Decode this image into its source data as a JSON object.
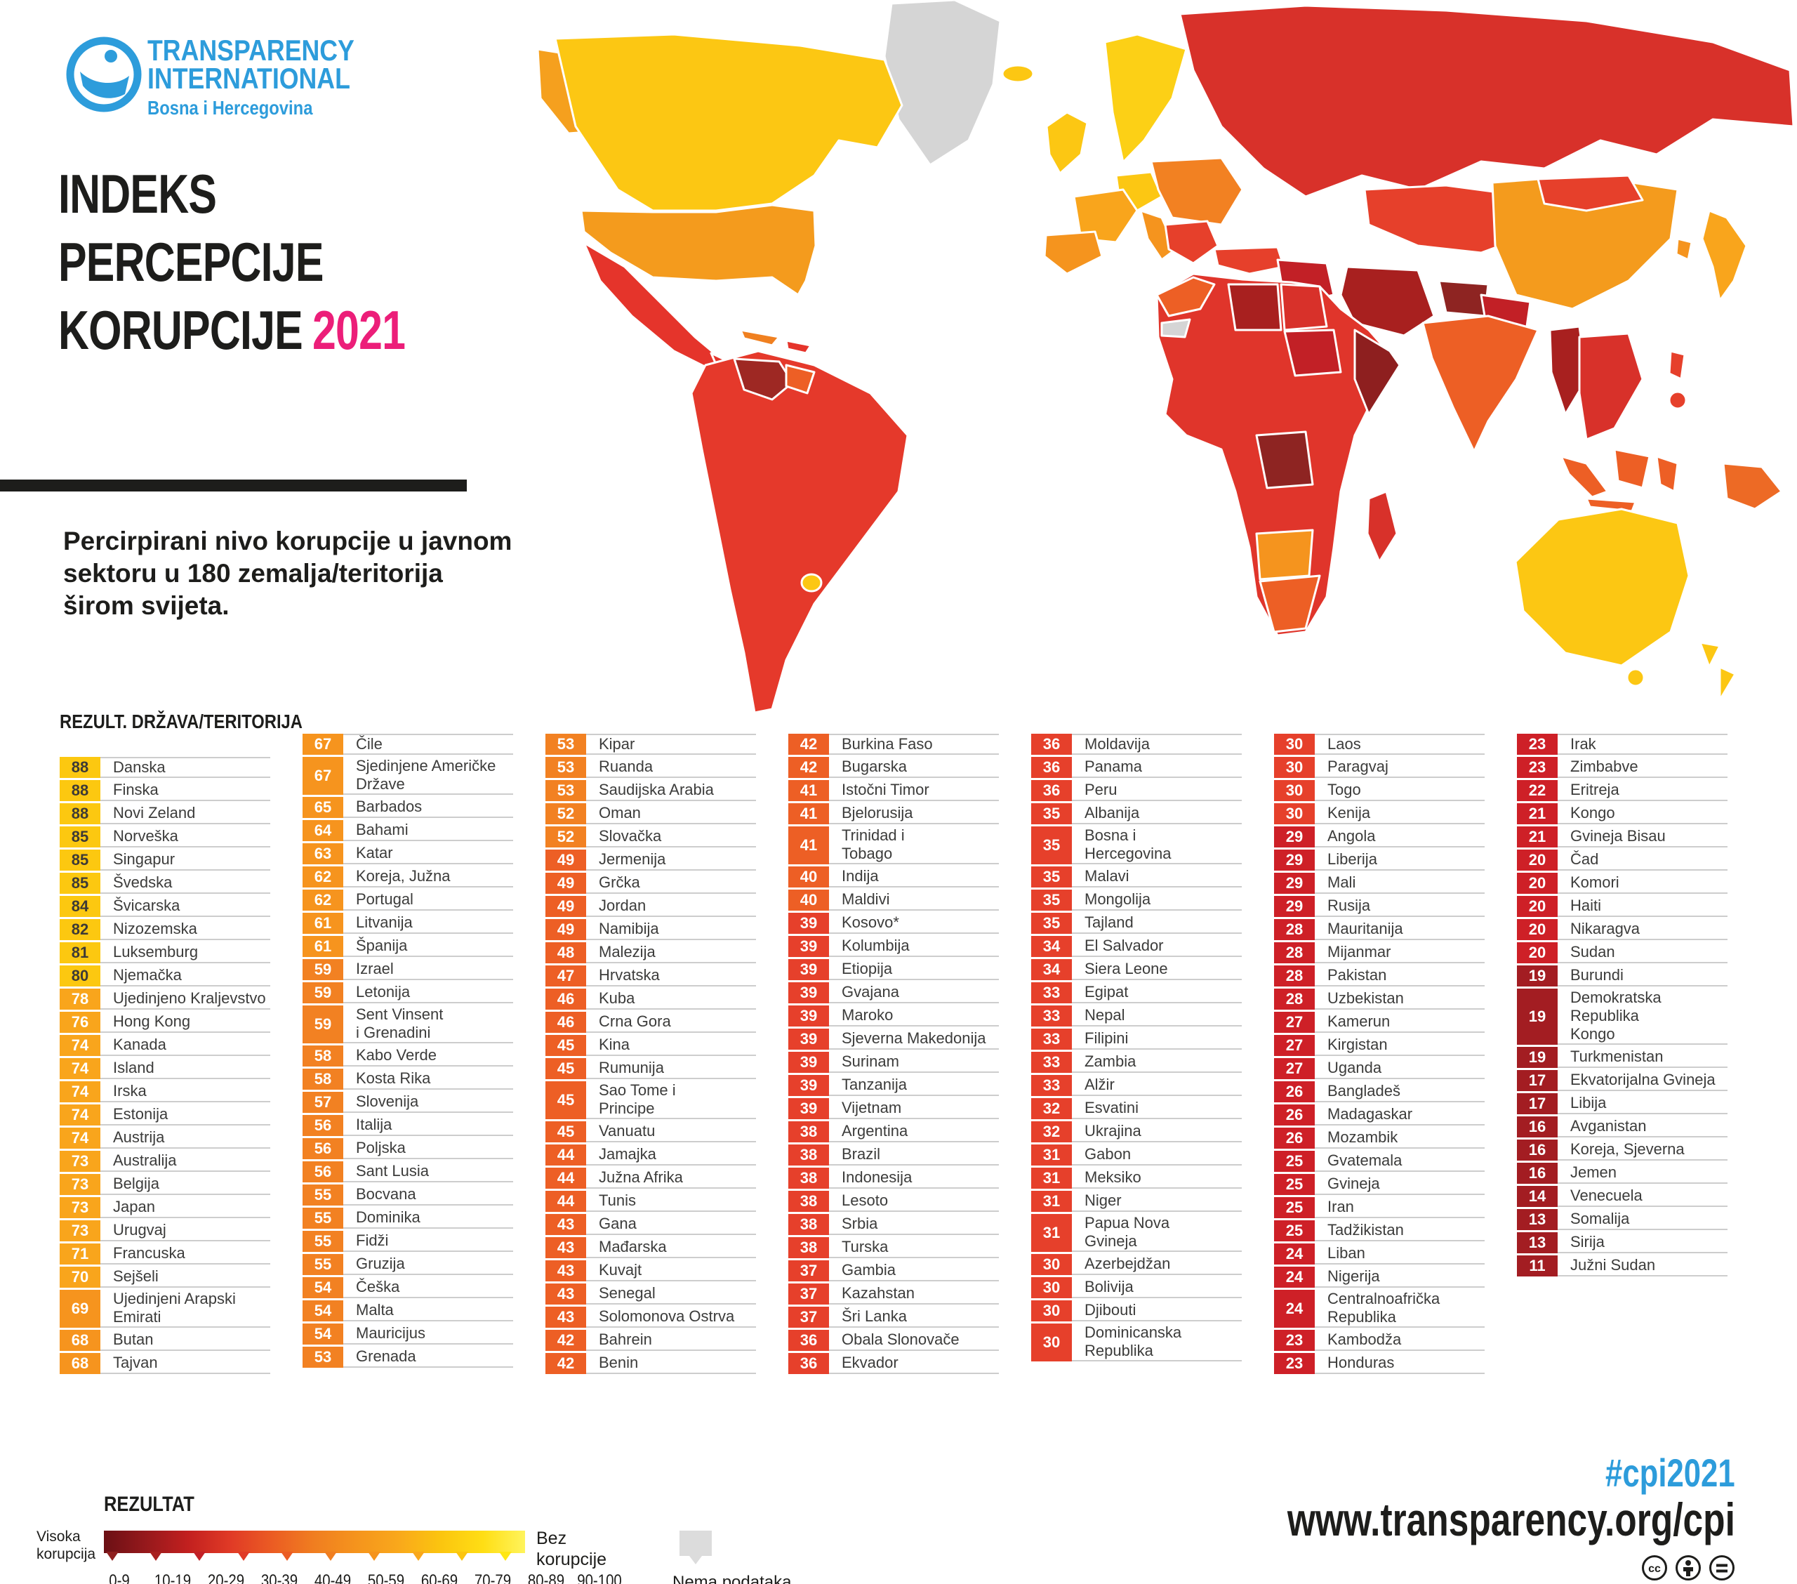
{
  "brand": {
    "org_line1": "TRANSPARENCY",
    "org_line2": "INTERNATIONAL",
    "chapter": "Bosna i Hercegovina"
  },
  "title": {
    "line1": "INDEKS",
    "line2": "PERCEPCIJE",
    "line3": "KORUPCIJE",
    "year": "2021"
  },
  "subtitle": "Percirpirani nivo korupcije u javnom\nsektoru u 180 zemalja/teritorija\nširom svijeta.",
  "list_header": "REZULT. DRŽAVA/TERITORIJA",
  "legend": {
    "title": "REZULTAT",
    "low_label": "Visoka\nkorupcija",
    "high_label": "Bez\nkorupcije",
    "no_data": "Nema podataka",
    "ticks": [
      "0-9",
      "10-19",
      "20-29",
      "30-39",
      "40-49",
      "50-59",
      "60-69",
      "70-79",
      "80-89",
      "90-100"
    ],
    "gradient": [
      "#6B1015",
      "#96191C",
      "#C2201F",
      "#E03A26",
      "#EB5C23",
      "#F07E20",
      "#F5941D",
      "#F9A81B",
      "#FBC50F",
      "#FFDE14",
      "#FFF45C"
    ],
    "tick_colors": [
      "#8E1F1F",
      "#A8201F",
      "#C22026",
      "#E03A26",
      "#EB5C23",
      "#F07E20",
      "#F5941D",
      "#F9A81B",
      "#FBC50F",
      "#FFE714"
    ]
  },
  "footer": {
    "hashtag": "#cpi2021",
    "url": "www.transparency.org/cpi"
  },
  "colors": {
    "brand_blue": "#2D9CDB",
    "accent_pink": "#EC1E79",
    "title_black": "#1D1D1B",
    "row_text": "#3C3C3B",
    "divider": "#CDCDCD",
    "bands": [
      {
        "min": 80,
        "color": "#FCC810",
        "text": "#3D3A36"
      },
      {
        "min": 70,
        "color": "#F9A51C",
        "text": "#FFFFFF"
      },
      {
        "min": 60,
        "color": "#F6941E",
        "text": "#FFFFFF"
      },
      {
        "min": 50,
        "color": "#F28122",
        "text": "#FFFFFF"
      },
      {
        "min": 40,
        "color": "#ED5F25",
        "text": "#FFFFFF"
      },
      {
        "min": 30,
        "color": "#E6402B",
        "text": "#FFFFFF"
      },
      {
        "min": 20,
        "color": "#CE2027",
        "text": "#FFFFFF"
      },
      {
        "min": 0,
        "color": "#A31D22",
        "text": "#FFFFFF"
      }
    ]
  },
  "map": {
    "no_data_color": "#D5D5D5",
    "regions": {
      "greenland": "#D5D5D5",
      "iceland": "#FCC713",
      "alaska": "#F5A01E",
      "canada": "#FCC713",
      "usa": "#F49B1D",
      "mexico": "#E5342B",
      "central-america": "#E5342B",
      "cuba": "#F08020",
      "hispaniola": "#E5342B",
      "south-america": "#E5392B",
      "venezuela": "#9E2823",
      "guyanas": "#ED5F25",
      "uruguay": "#FCC713",
      "uk": "#FCC713",
      "scandinavia": "#FCD016",
      "germany": "#FCC713",
      "france": "#F9A51C",
      "iberia": "#F5941E",
      "italy": "#F5941E",
      "east-europe": "#F28122",
      "balkans": "#E6402B",
      "russia": "#D8312A",
      "turkey": "#E6402B",
      "iraq-syria": "#C22026",
      "iran": "#A8201F",
      "saudi": "#F5A01E",
      "yemen": "#8E1F1F",
      "central-asia": "#E6402B",
      "afghanistan": "#8E2422",
      "pakistan": "#C22026",
      "india": "#ED5F25",
      "china": "#F49B1D",
      "mongolia": "#E6402B",
      "korea": "#F5941E",
      "japan": "#F9A51C",
      "myanmar": "#A8201F",
      "indochina": "#D8312A",
      "philippines": "#E6402B",
      "sumatra": "#ED5F25",
      "borneo": "#ED5F25",
      "sulawesi": "#ED5F25",
      "java": "#ED5F25",
      "papua": "#ED6A25",
      "australia": "#FCC713",
      "tasmania": "#FCC713",
      "new-zealand": "#FCC713",
      "africa": "#E0352B",
      "morocco": "#ED5F25",
      "west-sahara": "#D5D5D5",
      "libya": "#A8201F",
      "egypt": "#D8312A",
      "sudan": "#C22026",
      "somalia": "#8E1F1F",
      "drc": "#8E2422",
      "botswana-namibia": "#F5941E",
      "south-africa": "#ED5F25",
      "madagascar": "#D8312A"
    }
  },
  "chart_data": {
    "type": "choropleth",
    "title": "INDEKS PERCEPCIJE KORUPCIJE 2021",
    "subtitle": "Percirpirani nivo korupcije u javnom sektoru u 180 zemalja/teritorija širom svijeta.",
    "scale": {
      "min": 0,
      "max": 100,
      "low_label": "Visoka korupcija",
      "high_label": "Bez korupcije",
      "no_data_label": "Nema podataka"
    },
    "columns": [
      [
        {
          "score": 88,
          "name": "Danska"
        },
        {
          "score": 88,
          "name": "Finska"
        },
        {
          "score": 88,
          "name": "Novi Zeland"
        },
        {
          "score": 85,
          "name": "Norveška"
        },
        {
          "score": 85,
          "name": "Singapur"
        },
        {
          "score": 85,
          "name": "Švedska"
        },
        {
          "score": 84,
          "name": "Švicarska"
        },
        {
          "score": 82,
          "name": "Nizozemska"
        },
        {
          "score": 81,
          "name": "Luksemburg"
        },
        {
          "score": 80,
          "name": "Njemačka"
        },
        {
          "score": 78,
          "name": "Ujedinjeno Kraljevstvo"
        },
        {
          "score": 76,
          "name": "Hong Kong"
        },
        {
          "score": 74,
          "name": "Kanada"
        },
        {
          "score": 74,
          "name": "Island"
        },
        {
          "score": 74,
          "name": "Irska"
        },
        {
          "score": 74,
          "name": "Estonija"
        },
        {
          "score": 74,
          "name": "Austrija"
        },
        {
          "score": 73,
          "name": "Australija"
        },
        {
          "score": 73,
          "name": "Belgija"
        },
        {
          "score": 73,
          "name": "Japan"
        },
        {
          "score": 73,
          "name": "Urugvaj"
        },
        {
          "score": 71,
          "name": "Francuska"
        },
        {
          "score": 70,
          "name": "Sejšeli"
        },
        {
          "score": 69,
          "name": "Ujedinjeni Arapski\nEmirati"
        },
        {
          "score": 68,
          "name": "Butan"
        },
        {
          "score": 68,
          "name": "Tajvan"
        }
      ],
      [
        {
          "score": 67,
          "name": "Čile"
        },
        {
          "score": 67,
          "name": "Sjedinjene Američke\nDržave"
        },
        {
          "score": 65,
          "name": "Barbados"
        },
        {
          "score": 64,
          "name": "Bahami"
        },
        {
          "score": 63,
          "name": "Katar"
        },
        {
          "score": 62,
          "name": "Koreja, Južna"
        },
        {
          "score": 62,
          "name": "Portugal"
        },
        {
          "score": 61,
          "name": "Litvanija"
        },
        {
          "score": 61,
          "name": "Španija"
        },
        {
          "score": 59,
          "name": "Izrael"
        },
        {
          "score": 59,
          "name": "Letonija"
        },
        {
          "score": 59,
          "name": "Sent Vinsent\ni Grenadini"
        },
        {
          "score": 58,
          "name": "Kabo Verde"
        },
        {
          "score": 58,
          "name": "Kosta Rika"
        },
        {
          "score": 57,
          "name": "Slovenija"
        },
        {
          "score": 56,
          "name": "Italija"
        },
        {
          "score": 56,
          "name": "Poljska"
        },
        {
          "score": 56,
          "name": "Sant Lusia"
        },
        {
          "score": 55,
          "name": "Bocvana"
        },
        {
          "score": 55,
          "name": "Dominika"
        },
        {
          "score": 55,
          "name": "Fidži"
        },
        {
          "score": 55,
          "name": "Gruzija"
        },
        {
          "score": 54,
          "name": "Češka"
        },
        {
          "score": 54,
          "name": "Malta"
        },
        {
          "score": 54,
          "name": "Mauricijus"
        },
        {
          "score": 53,
          "name": "Grenada"
        }
      ],
      [
        {
          "score": 53,
          "name": "Kipar"
        },
        {
          "score": 53,
          "name": "Ruanda"
        },
        {
          "score": 53,
          "name": "Saudijska Arabia"
        },
        {
          "score": 52,
          "name": "Oman"
        },
        {
          "score": 52,
          "name": "Slovačka"
        },
        {
          "score": 49,
          "name": "Jermenija"
        },
        {
          "score": 49,
          "name": "Grčka"
        },
        {
          "score": 49,
          "name": "Jordan"
        },
        {
          "score": 49,
          "name": "Namibija"
        },
        {
          "score": 48,
          "name": "Malezija"
        },
        {
          "score": 47,
          "name": "Hrvatska"
        },
        {
          "score": 46,
          "name": "Kuba"
        },
        {
          "score": 46,
          "name": "Crna Gora"
        },
        {
          "score": 45,
          "name": "Kina"
        },
        {
          "score": 45,
          "name": "Rumunija"
        },
        {
          "score": 45,
          "name": "Sao Tome i\nPrincipe"
        },
        {
          "score": 45,
          "name": "Vanuatu"
        },
        {
          "score": 44,
          "name": "Jamajka"
        },
        {
          "score": 44,
          "name": "Južna Afrika"
        },
        {
          "score": 44,
          "name": "Tunis"
        },
        {
          "score": 43,
          "name": "Gana"
        },
        {
          "score": 43,
          "name": "Mađarska"
        },
        {
          "score": 43,
          "name": "Kuvajt"
        },
        {
          "score": 43,
          "name": "Senegal"
        },
        {
          "score": 43,
          "name": "Solomonova Ostrva"
        },
        {
          "score": 42,
          "name": "Bahrein"
        },
        {
          "score": 42,
          "name": "Benin"
        }
      ],
      [
        {
          "score": 42,
          "name": "Burkina Faso"
        },
        {
          "score": 42,
          "name": "Bugarska"
        },
        {
          "score": 41,
          "name": "Istočni Timor"
        },
        {
          "score": 41,
          "name": "Bjelorusija"
        },
        {
          "score": 41,
          "name": "Trinidad i\nTobago"
        },
        {
          "score": 40,
          "name": "Indija"
        },
        {
          "score": 40,
          "name": "Maldivi"
        },
        {
          "score": 39,
          "name": "Kosovo*"
        },
        {
          "score": 39,
          "name": "Kolumbija"
        },
        {
          "score": 39,
          "name": "Etiopija"
        },
        {
          "score": 39,
          "name": "Gvajana"
        },
        {
          "score": 39,
          "name": "Maroko"
        },
        {
          "score": 39,
          "name": "Sjeverna Makedonija"
        },
        {
          "score": 39,
          "name": "Surinam"
        },
        {
          "score": 39,
          "name": "Tanzanija"
        },
        {
          "score": 39,
          "name": "Vijetnam"
        },
        {
          "score": 38,
          "name": "Argentina"
        },
        {
          "score": 38,
          "name": "Brazil"
        },
        {
          "score": 38,
          "name": "Indonesija"
        },
        {
          "score": 38,
          "name": "Lesoto"
        },
        {
          "score": 38,
          "name": "Srbia"
        },
        {
          "score": 38,
          "name": "Turska"
        },
        {
          "score": 37,
          "name": "Gambia"
        },
        {
          "score": 37,
          "name": "Kazahstan"
        },
        {
          "score": 37,
          "name": "Šri Lanka"
        },
        {
          "score": 36,
          "name": "Obala Slonovače"
        },
        {
          "score": 36,
          "name": "Ekvador"
        }
      ],
      [
        {
          "score": 36,
          "name": "Moldavija"
        },
        {
          "score": 36,
          "name": "Panama"
        },
        {
          "score": 36,
          "name": "Peru"
        },
        {
          "score": 35,
          "name": "Albanija"
        },
        {
          "score": 35,
          "name": "Bosna i\nHercegovina"
        },
        {
          "score": 35,
          "name": "Malavi"
        },
        {
          "score": 35,
          "name": "Mongolija"
        },
        {
          "score": 35,
          "name": "Tajland"
        },
        {
          "score": 34,
          "name": "El Salvador"
        },
        {
          "score": 34,
          "name": "Siera Leone"
        },
        {
          "score": 33,
          "name": "Egipat"
        },
        {
          "score": 33,
          "name": "Nepal"
        },
        {
          "score": 33,
          "name": "Filipini"
        },
        {
          "score": 33,
          "name": "Zambia"
        },
        {
          "score": 33,
          "name": "Alžir"
        },
        {
          "score": 32,
          "name": "Esvatini"
        },
        {
          "score": 32,
          "name": "Ukrajina"
        },
        {
          "score": 31,
          "name": "Gabon"
        },
        {
          "score": 31,
          "name": "Meksiko"
        },
        {
          "score": 31,
          "name": "Niger"
        },
        {
          "score": 31,
          "name": "Papua Nova\nGvineja"
        },
        {
          "score": 30,
          "name": "Azerbejdžan"
        },
        {
          "score": 30,
          "name": "Bolivija"
        },
        {
          "score": 30,
          "name": "Djibouti"
        },
        {
          "score": 30,
          "name": "Dominicanska\nRepublika"
        }
      ],
      [
        {
          "score": 30,
          "name": "Laos"
        },
        {
          "score": 30,
          "name": "Paragvaj"
        },
        {
          "score": 30,
          "name": "Togo"
        },
        {
          "score": 30,
          "name": "Kenija"
        },
        {
          "score": 29,
          "name": "Angola"
        },
        {
          "score": 29,
          "name": "Liberija"
        },
        {
          "score": 29,
          "name": "Mali"
        },
        {
          "score": 29,
          "name": "Rusija"
        },
        {
          "score": 28,
          "name": "Mauritanija"
        },
        {
          "score": 28,
          "name": "Mijanmar"
        },
        {
          "score": 28,
          "name": "Pakistan"
        },
        {
          "score": 28,
          "name": "Uzbekistan"
        },
        {
          "score": 27,
          "name": "Kamerun"
        },
        {
          "score": 27,
          "name": "Kirgistan"
        },
        {
          "score": 27,
          "name": "Uganda"
        },
        {
          "score": 26,
          "name": "Bangladeš"
        },
        {
          "score": 26,
          "name": "Madagaskar"
        },
        {
          "score": 26,
          "name": "Mozambik"
        },
        {
          "score": 25,
          "name": "Gvatemala"
        },
        {
          "score": 25,
          "name": "Gvineja"
        },
        {
          "score": 25,
          "name": "Iran"
        },
        {
          "score": 25,
          "name": "Tadžikistan"
        },
        {
          "score": 24,
          "name": "Liban"
        },
        {
          "score": 24,
          "name": "Nigerija"
        },
        {
          "score": 24,
          "name": "Centralnoafrička\nRepublika"
        },
        {
          "score": 23,
          "name": "Kambodža"
        },
        {
          "score": 23,
          "name": "Honduras"
        }
      ],
      [
        {
          "score": 23,
          "name": "Irak"
        },
        {
          "score": 23,
          "name": "Zimbabve"
        },
        {
          "score": 22,
          "name": "Eritreja"
        },
        {
          "score": 21,
          "name": "Kongo"
        },
        {
          "score": 21,
          "name": "Gvineja Bisau"
        },
        {
          "score": 20,
          "name": "Čad"
        },
        {
          "score": 20,
          "name": "Komori"
        },
        {
          "score": 20,
          "name": "Haiti"
        },
        {
          "score": 20,
          "name": "Nikaragva"
        },
        {
          "score": 20,
          "name": "Sudan"
        },
        {
          "score": 19,
          "name": "Burundi"
        },
        {
          "score": 19,
          "name": "Demokratska\nRepublika\nKongo"
        },
        {
          "score": 19,
          "name": "Turkmenistan"
        },
        {
          "score": 17,
          "name": "Ekvatorijalna Gvineja"
        },
        {
          "score": 17,
          "name": "Libija"
        },
        {
          "score": 16,
          "name": "Avganistan"
        },
        {
          "score": 16,
          "name": "Koreja, Sjeverna"
        },
        {
          "score": 16,
          "name": "Jemen"
        },
        {
          "score": 14,
          "name": "Venecuela"
        },
        {
          "score": 13,
          "name": "Somalija"
        },
        {
          "score": 13,
          "name": "Sirija"
        },
        {
          "score": 11,
          "name": "Južni Sudan"
        }
      ]
    ]
  }
}
